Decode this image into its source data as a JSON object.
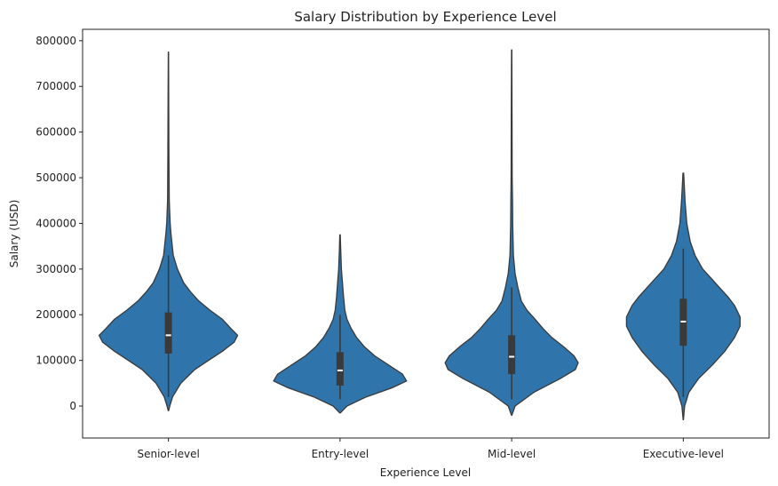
{
  "chart_data": {
    "type": "violin",
    "title": "Salary Distribution by Experience Level",
    "xlabel": "Experience Level",
    "ylabel": "Salary (USD)",
    "categories": [
      "Senior-level",
      "Entry-level",
      "Mid-level",
      "Executive-level"
    ],
    "ylim": [
      -70000,
      825000
    ],
    "yticks": [
      0,
      100000,
      200000,
      300000,
      400000,
      500000,
      600000,
      700000,
      800000
    ],
    "yticklabels": [
      "0",
      "100000",
      "200000",
      "300000",
      "400000",
      "500000",
      "600000",
      "700000",
      "800000"
    ],
    "grid": false,
    "color": "#2f74aa",
    "violins": [
      {
        "category": "Senior-level",
        "median": 155000,
        "q1": 115000,
        "q3": 205000,
        "whisker_low": 20000,
        "whisker_high": 330000,
        "extent": [
          -10000,
          775000
        ],
        "density": [
          [
            -10000,
            0.003
          ],
          [
            0,
            0.02
          ],
          [
            20000,
            0.06
          ],
          [
            50000,
            0.18
          ],
          [
            80000,
            0.38
          ],
          [
            100000,
            0.58
          ],
          [
            120000,
            0.78
          ],
          [
            140000,
            0.95
          ],
          [
            155000,
            1.0
          ],
          [
            170000,
            0.9
          ],
          [
            190000,
            0.78
          ],
          [
            210000,
            0.6
          ],
          [
            230000,
            0.44
          ],
          [
            250000,
            0.32
          ],
          [
            270000,
            0.22
          ],
          [
            300000,
            0.13
          ],
          [
            330000,
            0.07
          ],
          [
            380000,
            0.035
          ],
          [
            400000,
            0.025
          ],
          [
            450000,
            0.012
          ],
          [
            550000,
            0.008
          ],
          [
            650000,
            0.005
          ],
          [
            775000,
            0.002
          ]
        ]
      },
      {
        "category": "Entry-level",
        "median": 78000,
        "q1": 45000,
        "q3": 118000,
        "whisker_low": 15000,
        "whisker_high": 200000,
        "extent": [
          -15000,
          375000
        ],
        "density": [
          [
            -15000,
            0.005
          ],
          [
            0,
            0.1
          ],
          [
            20000,
            0.38
          ],
          [
            40000,
            0.75
          ],
          [
            55000,
            0.96
          ],
          [
            70000,
            0.9
          ],
          [
            90000,
            0.7
          ],
          [
            110000,
            0.5
          ],
          [
            130000,
            0.35
          ],
          [
            150000,
            0.24
          ],
          [
            170000,
            0.16
          ],
          [
            190000,
            0.1
          ],
          [
            210000,
            0.07
          ],
          [
            240000,
            0.05
          ],
          [
            270000,
            0.035
          ],
          [
            300000,
            0.02
          ],
          [
            340000,
            0.01
          ],
          [
            375000,
            0.003
          ]
        ]
      },
      {
        "category": "Mid-level",
        "median": 108000,
        "q1": 70000,
        "q3": 155000,
        "whisker_low": 15000,
        "whisker_high": 260000,
        "extent": [
          -20000,
          780000
        ],
        "density": [
          [
            -20000,
            0.003
          ],
          [
            0,
            0.05
          ],
          [
            30000,
            0.32
          ],
          [
            60000,
            0.7
          ],
          [
            80000,
            0.92
          ],
          [
            95000,
            0.96
          ],
          [
            110000,
            0.9
          ],
          [
            130000,
            0.75
          ],
          [
            150000,
            0.58
          ],
          [
            170000,
            0.45
          ],
          [
            190000,
            0.34
          ],
          [
            210000,
            0.22
          ],
          [
            230000,
            0.14
          ],
          [
            260000,
            0.09
          ],
          [
            290000,
            0.05
          ],
          [
            330000,
            0.025
          ],
          [
            400000,
            0.015
          ],
          [
            450000,
            0.012
          ],
          [
            500000,
            0.008
          ],
          [
            650000,
            0.005
          ],
          [
            780000,
            0.002
          ]
        ]
      },
      {
        "category": "Executive-level",
        "median": 185000,
        "q1": 132000,
        "q3": 235000,
        "whisker_low": 20000,
        "whisker_high": 345000,
        "extent": [
          -30000,
          510000
        ],
        "density": [
          [
            -30000,
            0.002
          ],
          [
            0,
            0.02
          ],
          [
            30000,
            0.08
          ],
          [
            60000,
            0.22
          ],
          [
            90000,
            0.42
          ],
          [
            120000,
            0.6
          ],
          [
            150000,
            0.74
          ],
          [
            175000,
            0.82
          ],
          [
            195000,
            0.82
          ],
          [
            220000,
            0.74
          ],
          [
            240000,
            0.64
          ],
          [
            260000,
            0.52
          ],
          [
            280000,
            0.4
          ],
          [
            300000,
            0.28
          ],
          [
            330000,
            0.17
          ],
          [
            360000,
            0.1
          ],
          [
            400000,
            0.05
          ],
          [
            450000,
            0.025
          ],
          [
            510000,
            0.005
          ]
        ]
      }
    ]
  }
}
